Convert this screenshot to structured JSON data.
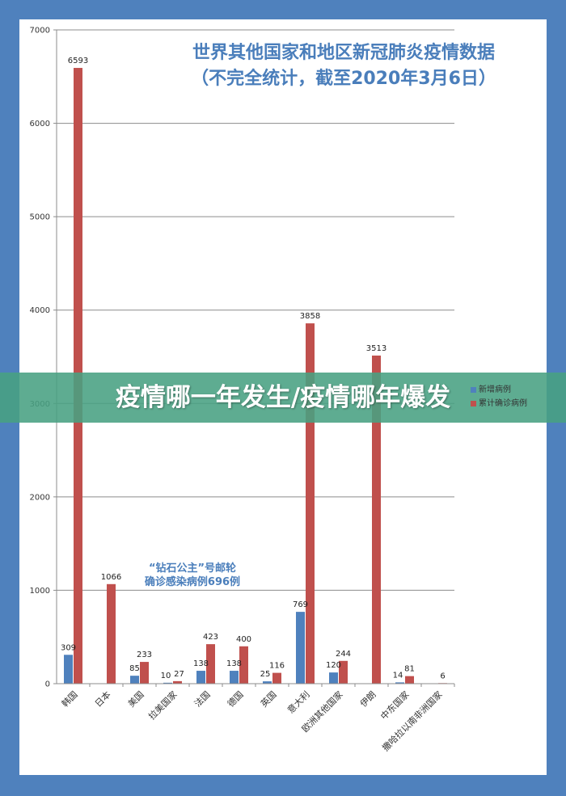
{
  "title_line1": "世界其他国家和地区新冠肺炎疫情数据",
  "title_line2": "（不完全统计，截至2020年3月6日）",
  "annotation_line1": "“钻石公主”号邮轮",
  "annotation_line2": "确诊感染病例696例",
  "banner_text": "疫情哪一年发生/疫情哪年爆发",
  "colors": {
    "new_cases": "#4f81bd",
    "cumulative": "#c0504d",
    "background": "#4f81bd"
  },
  "chart_data": {
    "type": "bar",
    "categories": [
      "韩国",
      "日本",
      "美国",
      "拉美国家",
      "法国",
      "德国",
      "英国",
      "意大利",
      "欧洲其他国家",
      "伊朗",
      "中东国家",
      "撒哈拉以南非洲国家"
    ],
    "series": [
      {
        "name": "新增病例",
        "values": [
          309,
          null,
          85,
          10,
          138,
          138,
          25,
          769,
          120,
          null,
          14,
          null
        ]
      },
      {
        "name": "累计确诊病例",
        "values": [
          6593,
          1066,
          233,
          27,
          423,
          400,
          116,
          3858,
          244,
          3513,
          81,
          6
        ]
      }
    ],
    "yticks": [
      "0",
      "1000",
      "2000",
      "3000",
      "4000",
      "5000",
      "6000",
      "7000"
    ],
    "ylim": [
      0,
      7000
    ],
    "grid": true,
    "legend_position": "right"
  }
}
